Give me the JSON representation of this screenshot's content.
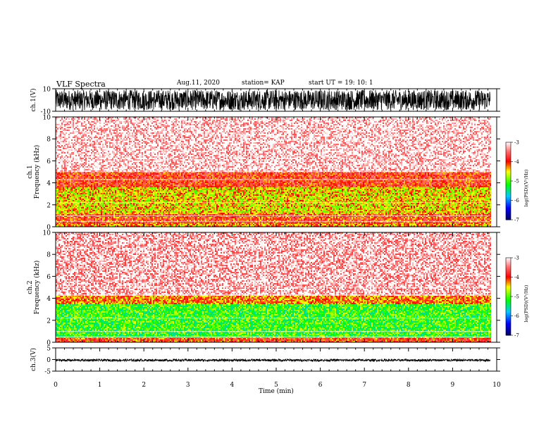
{
  "header": {
    "title": "VLF Spectra",
    "date": "Aug.11, 2020",
    "station": "station= KAP",
    "start_ut": "start  UT =   19: 10: 1"
  },
  "chart_data": [
    {
      "type": "line",
      "panel": "ch1-waveform",
      "ylabel": "ch.1(V)",
      "ylim": [
        -10,
        10
      ],
      "yticks": [
        "10",
        "-10"
      ],
      "xlim": [
        0,
        9.85
      ],
      "description_values": {
        "amplitude_range": [
          -9,
          9
        ]
      }
    },
    {
      "type": "heatmap",
      "panel": "ch1-spectrogram",
      "ylabel": "ch.1\nFrequency (kHz)",
      "ylim": [
        0,
        10
      ],
      "yticks": [
        "0",
        "2",
        "4",
        "6",
        "8",
        "10"
      ],
      "xlim": [
        0,
        9.85
      ],
      "bands": [
        {
          "from_khz": 0.0,
          "to_khz": 0.3,
          "level": -4.3
        },
        {
          "from_khz": 0.3,
          "to_khz": 1.2,
          "level": -4.0
        },
        {
          "from_khz": 1.2,
          "to_khz": 3.6,
          "level": -4.5
        },
        {
          "from_khz": 3.6,
          "to_khz": 5.0,
          "level": -3.9
        },
        {
          "from_khz": 5.0,
          "to_khz": 10.0,
          "level": -3.1
        }
      ],
      "colorbar": {
        "label": "log(PSD)(V²/Hz)",
        "min": -7,
        "max": -3,
        "ticks": [
          "-3",
          "-4",
          "-5",
          "-6",
          "-7"
        ]
      }
    },
    {
      "type": "heatmap",
      "panel": "ch2-spectrogram",
      "ylabel": "ch.2\nFrequency (kHz)",
      "ylim": [
        0,
        10
      ],
      "yticks": [
        "0",
        "2",
        "4",
        "6",
        "8",
        "10"
      ],
      "xlim": [
        0,
        9.85
      ],
      "bands": [
        {
          "from_khz": 0.0,
          "to_khz": 0.4,
          "level": -4.0
        },
        {
          "from_khz": 0.4,
          "to_khz": 3.4,
          "level": -5.1
        },
        {
          "from_khz": 3.4,
          "to_khz": 4.2,
          "level": -4.2
        },
        {
          "from_khz": 4.2,
          "to_khz": 10.0,
          "level": -3.2
        }
      ],
      "colorbar": {
        "label": "log(PSD)(V²/Hz)",
        "min": -7,
        "max": -3,
        "ticks": [
          "-3",
          "-4",
          "-5",
          "-6",
          "-7"
        ]
      }
    },
    {
      "type": "line",
      "panel": "ch3-waveform",
      "ylabel": "ch.3(V)",
      "ylim": [
        -5,
        5
      ],
      "yticks": [
        "5",
        "0",
        "-5"
      ],
      "xlim": [
        0,
        9.85
      ],
      "description_values": {
        "amplitude_range": [
          -0.8,
          0.2
        ]
      }
    }
  ],
  "xaxis": {
    "label": "Time (min)",
    "range": [
      0,
      10
    ],
    "ticks": [
      "0",
      "1",
      "2",
      "3",
      "4",
      "5",
      "6",
      "7",
      "8",
      "9",
      "10"
    ]
  },
  "colors": {
    "colormap": [
      "#ffffff",
      "#ff0000",
      "#ffff00",
      "#00ff00",
      "#00ffff",
      "#0000ff",
      "#000080"
    ]
  }
}
